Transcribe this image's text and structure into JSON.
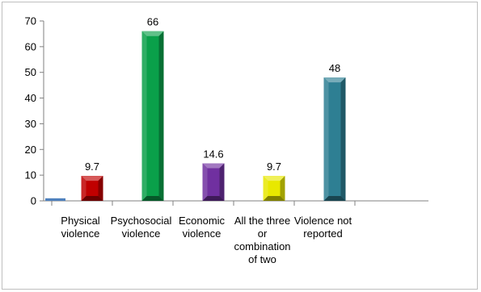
{
  "chart_data": {
    "type": "bar",
    "categories": [
      "Physical violence",
      "Psychosocial violence",
      "Economic violence",
      "All the three or combination of two",
      "Violence not reported"
    ],
    "category_label_lines": [
      "Physical\nviolence",
      "Psychosocial\nviolence",
      "Economic\nviolence",
      "All the three\nor\ncombination\nof two",
      "Violence not\nreported"
    ],
    "values": [
      9.7,
      66,
      14.6,
      9.7,
      48
    ],
    "extra_bar": {
      "category": "Physical violence",
      "value": 1
    },
    "data_labels": [
      "9.7",
      "66",
      "14.6",
      "9.7",
      "48"
    ],
    "colors": [
      "#c00000",
      "#0aa04a",
      "#7030a0",
      "#e8e800",
      "#2e7f93"
    ],
    "extra_bar_color": "#4f81bd",
    "title": "",
    "xlabel": "",
    "ylabel": "",
    "ylim": [
      0,
      70
    ],
    "yticks": [
      0,
      10,
      20,
      30,
      40,
      50,
      60,
      70
    ],
    "grid": false,
    "legend": "none"
  }
}
